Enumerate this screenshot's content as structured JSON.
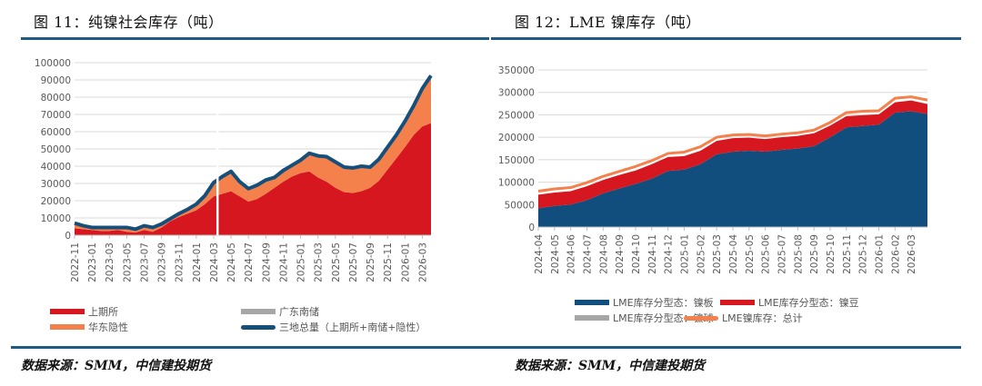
{
  "left": {
    "title": "图 11：纯镍社会库存（吨）",
    "source": "数据来源：SMM，中信建投期货",
    "legend": [
      {
        "label": "上期所",
        "color": "#d7171f",
        "kind": "area"
      },
      {
        "label": "广东南储",
        "color": "#a6a6a6",
        "kind": "area"
      },
      {
        "label": "华东隐性",
        "color": "#f4814c",
        "kind": "area"
      },
      {
        "label": "三地总量（上期所+南储+隐性）",
        "color": "#154f7a",
        "kind": "line"
      }
    ]
  },
  "right": {
    "title": "图 12：LME 镍库存（吨）",
    "source": "数据来源：SMM，中信建投期货",
    "legend": [
      {
        "label": "LME库存分型态：镍板",
        "color": "#114e7e",
        "kind": "area"
      },
      {
        "label": "LME库存分型态：镍豆",
        "color": "#d7171f",
        "kind": "area"
      },
      {
        "label": "LME库存分型态：镍球",
        "color": "#a6a6a6",
        "kind": "area"
      },
      {
        "label": "LME镍库存：总计",
        "color": "#f4814c",
        "kind": "line"
      }
    ]
  },
  "chart_data": [
    {
      "type": "area",
      "title": "纯镍社会库存（吨）",
      "xlabel": "",
      "ylabel": "",
      "ylim": [
        0,
        100000
      ],
      "yticks": [
        0,
        10000,
        20000,
        30000,
        40000,
        50000,
        60000,
        70000,
        80000,
        90000,
        100000
      ],
      "grid": true,
      "legend_position": "bottom",
      "x": [
        "2022-11",
        "2022-12",
        "2023-01",
        "2023-02",
        "2023-03",
        "2023-04",
        "2023-05",
        "2023-06",
        "2023-07",
        "2023-08",
        "2023-09",
        "2023-10",
        "2023-11",
        "2023-12",
        "2024-01",
        "2024-02",
        "2024-03",
        "2024-04",
        "2024-05",
        "2024-06",
        "2024-07",
        "2024-08",
        "2024-09",
        "2024-10",
        "2024-11",
        "2024-12",
        "2025-01",
        "2025-02",
        "2025-03",
        "2025-04",
        "2025-05",
        "2025-06",
        "2025-07",
        "2025-08",
        "2025-09",
        "2025-10",
        "2025-11",
        "2025-12",
        "2026-01",
        "2026-02",
        "2026-03",
        "2026-04"
      ],
      "xticks": [
        "2022-11",
        "2023-01",
        "2023-03",
        "2023-05",
        "2023-07",
        "2023-09",
        "2023-11",
        "2024-01",
        "2024-03",
        "2024-05",
        "2024-07",
        "2024-09",
        "2024-11",
        "2025-01",
        "2025-03",
        "2025-05",
        "2025-07",
        "2025-09",
        "2025-11",
        "2026-01",
        "2026-03"
      ],
      "series": [
        {
          "name": "上期所",
          "kind": "stacked-area",
          "values": [
            4000,
            3500,
            3000,
            2500,
            2500,
            3000,
            2000,
            1500,
            3000,
            2000,
            4500,
            8000,
            10500,
            12500,
            14500,
            18000,
            22500,
            24000,
            25500,
            22500,
            19500,
            21000,
            24000,
            27500,
            31000,
            34000,
            36000,
            37000,
            33500,
            31000,
            27500,
            25000,
            24500,
            25500,
            27500,
            31500,
            38000,
            44500,
            51000,
            58000,
            63000,
            65000
          ]
        },
        {
          "name": "广东南储",
          "kind": "stacked-area",
          "values": [
            0,
            0,
            0,
            0,
            0,
            0,
            0,
            0,
            0,
            0,
            0,
            0,
            0,
            0,
            0,
            0,
            0,
            0,
            0,
            0,
            0,
            0,
            0,
            0,
            0,
            0,
            0,
            0,
            0,
            0,
            0,
            0,
            0,
            0,
            0,
            0,
            0,
            0,
            0,
            0,
            0,
            0
          ]
        },
        {
          "name": "华东隐性",
          "kind": "stacked-area",
          "values": [
            3000,
            2000,
            1500,
            2000,
            2000,
            1500,
            2500,
            2000,
            2500,
            2500,
            2000,
            1500,
            2000,
            2500,
            3500,
            5000,
            8000,
            10000,
            11500,
            8500,
            7500,
            8000,
            8000,
            6000,
            6500,
            6500,
            7500,
            10500,
            12500,
            14500,
            15000,
            14500,
            14500,
            14500,
            12000,
            12500,
            13000,
            13500,
            15000,
            17000,
            22000,
            27500
          ]
        },
        {
          "name": "三地总量（上期所+南储+隐性）",
          "kind": "line",
          "values": [
            7000,
            5500,
            4500,
            4500,
            4500,
            4500,
            4500,
            3500,
            5500,
            4500,
            6500,
            9500,
            12500,
            15000,
            18000,
            23000,
            30500,
            34000,
            37000,
            31000,
            27000,
            29000,
            32000,
            33500,
            37500,
            40500,
            43500,
            47500,
            46000,
            45500,
            42500,
            39500,
            39000,
            40000,
            39500,
            44000,
            51000,
            58000,
            66000,
            75000,
            85000,
            92500
          ]
        }
      ],
      "annotations": [
        "2024-03 上期所单日回落至 0 附近 (白色缺口)"
      ]
    },
    {
      "type": "area",
      "title": "LME 镍库存（吨）",
      "xlabel": "",
      "ylabel": "",
      "ylim": [
        0,
        350000
      ],
      "yticks": [
        0,
        50000,
        100000,
        150000,
        200000,
        250000,
        300000,
        350000
      ],
      "grid": true,
      "legend_position": "bottom",
      "x": [
        "2024-04",
        "2024-05",
        "2024-06",
        "2024-07",
        "2024-08",
        "2024-09",
        "2024-10",
        "2024-11",
        "2024-12",
        "2025-01",
        "2025-02",
        "2025-03",
        "2025-04",
        "2025-05",
        "2025-06",
        "2025-07",
        "2025-08",
        "2025-09",
        "2025-10",
        "2025-11",
        "2025-12",
        "2026-01",
        "2026-02",
        "2026-03",
        "2026-04"
      ],
      "xticks": [
        "2024-04",
        "2024-05",
        "2024-06",
        "2024-07",
        "2024-08",
        "2024-09",
        "2024-10",
        "2024-11",
        "2024-12",
        "2025-01",
        "2025-02",
        "2025-03",
        "2025-04",
        "2025-05",
        "2025-06",
        "2025-07",
        "2025-08",
        "2025-09",
        "2025-10",
        "2025-11",
        "2025-12",
        "2026-01",
        "2026-02",
        "2026-03"
      ],
      "series": [
        {
          "name": "LME库存分型态：镍板",
          "kind": "stacked-area",
          "values": [
            42000,
            47000,
            50000,
            60000,
            75000,
            86000,
            96000,
            108000,
            125000,
            128000,
            140000,
            162000,
            168000,
            170000,
            168000,
            172000,
            175000,
            180000,
            200000,
            222000,
            225000,
            228000,
            255000,
            258000,
            252000
          ]
        },
        {
          "name": "LME库存分型态：镍豆",
          "kind": "stacked-area",
          "values": [
            30000,
            30000,
            30000,
            31000,
            30000,
            30000,
            30000,
            32000,
            31000,
            30000,
            30000,
            30000,
            30000,
            29000,
            28000,
            28000,
            28000,
            29000,
            26000,
            25000,
            24000,
            23000,
            23000,
            24000,
            22000
          ]
        },
        {
          "name": "LME库存分型态：镍球",
          "kind": "stacked-area",
          "values": [
            0,
            0,
            0,
            0,
            0,
            0,
            0,
            0,
            0,
            0,
            0,
            0,
            0,
            0,
            0,
            0,
            0,
            0,
            0,
            0,
            0,
            0,
            0,
            0,
            0
          ]
        },
        {
          "name": "LME镍库存：总计",
          "kind": "line",
          "values": [
            80000,
            85000,
            88000,
            99000,
            113000,
            124000,
            135000,
            148000,
            164000,
            167000,
            179000,
            200000,
            205000,
            206000,
            203000,
            207000,
            210000,
            216000,
            233000,
            255000,
            258000,
            259000,
            287000,
            290000,
            283000
          ]
        }
      ]
    }
  ]
}
